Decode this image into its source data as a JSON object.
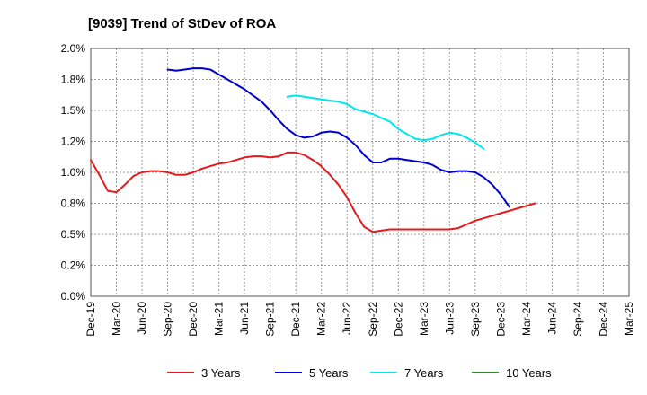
{
  "chart_data": {
    "type": "line",
    "title": "[9039]  Trend of StDev of ROA",
    "xlabel": "",
    "ylabel": "",
    "x_ticks": [
      "Dec-19",
      "Mar-20",
      "Jun-20",
      "Sep-20",
      "Dec-20",
      "Mar-21",
      "Jun-21",
      "Sep-21",
      "Dec-21",
      "Mar-22",
      "Jun-22",
      "Sep-22",
      "Dec-22",
      "Mar-23",
      "Jun-23",
      "Sep-23",
      "Dec-23",
      "Mar-24",
      "Jun-24",
      "Sep-24",
      "Dec-24",
      "Mar-25"
    ],
    "y_ticks": [
      "0.0%",
      "0.2%",
      "0.5%",
      "0.8%",
      "1.0%",
      "1.2%",
      "1.5%",
      "1.8%",
      "2.0%"
    ],
    "ylim": [
      0,
      2.0
    ],
    "grid": true,
    "legend_position": "bottom",
    "series": [
      {
        "name": "3 Years",
        "color": "#e41a1c",
        "points": [
          [
            0,
            1.1
          ],
          [
            1,
            0.98
          ],
          [
            2,
            0.85
          ],
          [
            3,
            0.84
          ],
          [
            4,
            0.9
          ],
          [
            5,
            0.97
          ],
          [
            6,
            1.0
          ],
          [
            7,
            1.01
          ],
          [
            8,
            1.01
          ],
          [
            9,
            1.0
          ],
          [
            10,
            0.98
          ],
          [
            11,
            0.98
          ],
          [
            12,
            1.0
          ],
          [
            13,
            1.03
          ],
          [
            14,
            1.05
          ],
          [
            15,
            1.07
          ],
          [
            16,
            1.08
          ],
          [
            17,
            1.1
          ],
          [
            18,
            1.12
          ],
          [
            19,
            1.13
          ],
          [
            20,
            1.13
          ],
          [
            21,
            1.12
          ],
          [
            22,
            1.13
          ],
          [
            23,
            1.16
          ],
          [
            24,
            1.16
          ],
          [
            25,
            1.14
          ],
          [
            26,
            1.1
          ],
          [
            27,
            1.05
          ],
          [
            28,
            0.98
          ],
          [
            29,
            0.9
          ],
          [
            30,
            0.8
          ],
          [
            31,
            0.67
          ],
          [
            32,
            0.56
          ],
          [
            33,
            0.52
          ],
          [
            34,
            0.53
          ],
          [
            35,
            0.54
          ],
          [
            36,
            0.54
          ],
          [
            37,
            0.54
          ],
          [
            38,
            0.54
          ],
          [
            39,
            0.54
          ],
          [
            40,
            0.54
          ],
          [
            41,
            0.54
          ],
          [
            42,
            0.54
          ],
          [
            43,
            0.55
          ],
          [
            44,
            0.58
          ],
          [
            45,
            0.61
          ],
          [
            46,
            0.63
          ],
          [
            47,
            0.65
          ],
          [
            48,
            0.67
          ],
          [
            49,
            0.69
          ],
          [
            50,
            0.71
          ],
          [
            51,
            0.73
          ],
          [
            52,
            0.75
          ]
        ]
      },
      {
        "name": "5 Years",
        "color": "#0000cc",
        "points": [
          [
            9,
            1.83
          ],
          [
            10,
            1.82
          ],
          [
            11,
            1.83
          ],
          [
            12,
            1.84
          ],
          [
            13,
            1.84
          ],
          [
            14,
            1.83
          ],
          [
            15,
            1.79
          ],
          [
            16,
            1.75
          ],
          [
            17,
            1.71
          ],
          [
            18,
            1.67
          ],
          [
            19,
            1.62
          ],
          [
            20,
            1.57
          ],
          [
            21,
            1.5
          ],
          [
            22,
            1.42
          ],
          [
            23,
            1.35
          ],
          [
            24,
            1.3
          ],
          [
            25,
            1.28
          ],
          [
            26,
            1.29
          ],
          [
            27,
            1.32
          ],
          [
            28,
            1.33
          ],
          [
            29,
            1.32
          ],
          [
            30,
            1.28
          ],
          [
            31,
            1.22
          ],
          [
            32,
            1.14
          ],
          [
            33,
            1.08
          ],
          [
            34,
            1.08
          ],
          [
            35,
            1.11
          ],
          [
            36,
            1.11
          ],
          [
            37,
            1.1
          ],
          [
            38,
            1.09
          ],
          [
            39,
            1.08
          ],
          [
            40,
            1.06
          ],
          [
            41,
            1.02
          ],
          [
            42,
            1.0
          ],
          [
            43,
            1.01
          ],
          [
            44,
            1.01
          ],
          [
            45,
            1.0
          ],
          [
            46,
            0.96
          ],
          [
            47,
            0.9
          ],
          [
            48,
            0.82
          ],
          [
            49,
            0.72
          ]
        ]
      },
      {
        "name": "7 Years",
        "color": "#00e5ee",
        "points": [
          [
            23,
            1.61
          ],
          [
            24,
            1.62
          ],
          [
            25,
            1.61
          ],
          [
            26,
            1.6
          ],
          [
            27,
            1.59
          ],
          [
            28,
            1.58
          ],
          [
            29,
            1.57
          ],
          [
            30,
            1.55
          ],
          [
            31,
            1.51
          ],
          [
            32,
            1.49
          ],
          [
            33,
            1.47
          ],
          [
            34,
            1.44
          ],
          [
            35,
            1.41
          ],
          [
            36,
            1.35
          ],
          [
            37,
            1.31
          ],
          [
            38,
            1.27
          ],
          [
            39,
            1.26
          ],
          [
            40,
            1.27
          ],
          [
            41,
            1.3
          ],
          [
            42,
            1.32
          ],
          [
            43,
            1.31
          ],
          [
            44,
            1.28
          ],
          [
            45,
            1.24
          ],
          [
            46,
            1.19
          ]
        ]
      },
      {
        "name": "10 Years",
        "color": "#228b22",
        "points": []
      }
    ]
  }
}
